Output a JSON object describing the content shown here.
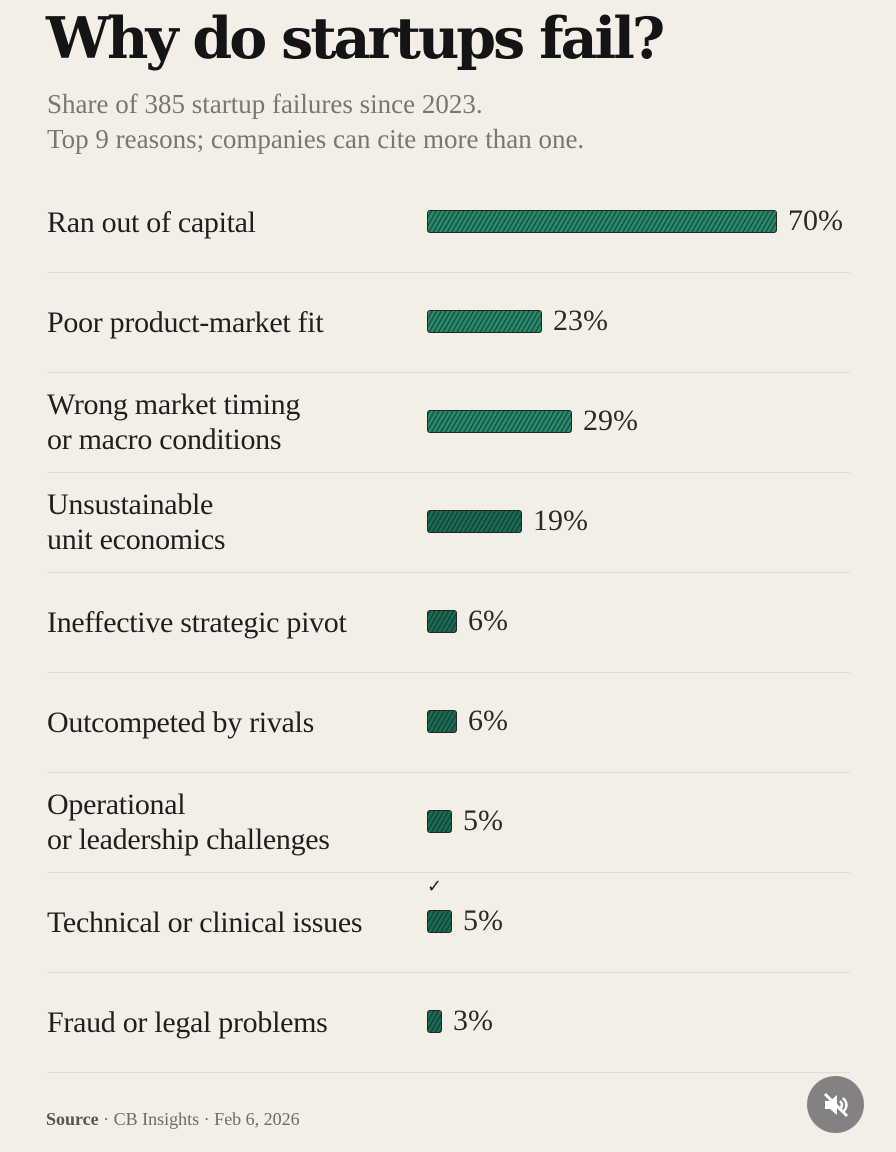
{
  "chart_data": {
    "type": "bar",
    "orientation": "horizontal",
    "title": "Why do startups fail?",
    "subtitle": [
      "Share of 385 startup failures since 2023.",
      "Top 9 reasons; companies can cite more than one."
    ],
    "categories": [
      "Ran out of capital",
      "Poor product-market fit",
      "Wrong market timing\nor macro conditions",
      "Unsustainable\nunit economics",
      "Ineffective strategic pivot",
      "Outcompeted by rivals",
      "Operational\nor leadership challenges",
      "Technical or clinical issues",
      "Fraud or legal problems"
    ],
    "values": [
      70,
      23,
      29,
      19,
      6,
      6,
      5,
      5,
      3
    ],
    "value_labels": [
      "70%",
      "23%",
      "29%",
      "19%",
      "6%",
      "6%",
      "5%",
      "5%",
      "3%"
    ],
    "xlabel": "",
    "ylabel": "",
    "grid": false,
    "legend": "none",
    "colors": {
      "bar": "#2a8a6e",
      "bar_dark": "#1d6b56",
      "outline": "#1d2a24"
    }
  },
  "source": {
    "label": "Source",
    "text": "· CB Insights · Feb 6, 2026"
  },
  "controls": {
    "check_glyph": "✓",
    "mute_icon": "speaker-muted-icon"
  }
}
